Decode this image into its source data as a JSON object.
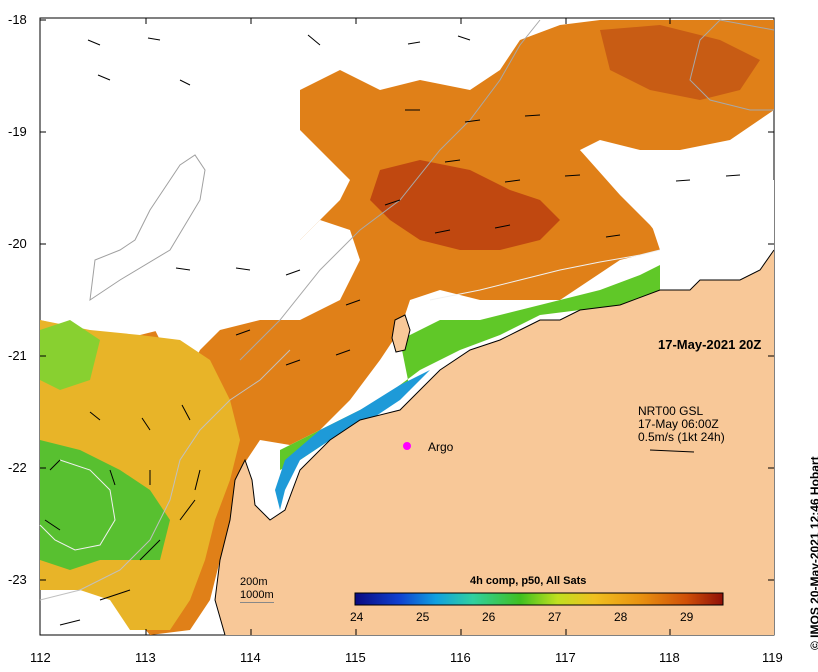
{
  "map": {
    "date_stamp": "17-May-2021 20Z",
    "argo_label": "Argo",
    "current_source_lines": [
      "NRT00 GSL",
      "17-May 06:00Z",
      "0.5m/s (1kt 24h)"
    ],
    "contour_lines": [
      "200m",
      "1000m"
    ],
    "colorbar_title": "4h comp, p50, All Sats",
    "colorbar_ticks": [
      "24",
      "25",
      "26",
      "27",
      "28",
      "29"
    ],
    "credit": "© IMOS 20-May-2021 12:46 Hobart",
    "y_ticks": [
      "-18",
      "-19",
      "-20",
      "-21",
      "-22",
      "-23"
    ],
    "x_ticks": [
      "112",
      "113",
      "114",
      "115",
      "116",
      "117",
      "118",
      "119"
    ],
    "colors": {
      "land": "#f8c898",
      "ocean_cloud": "#ffffff",
      "sst_hot": "#a52a00",
      "sst_warm": "#e07a10",
      "sst_mid": "#e8b020",
      "sst_cool": "#50c020",
      "sst_cold": "#2060e0",
      "argo_marker": "#ff00ff"
    }
  }
}
